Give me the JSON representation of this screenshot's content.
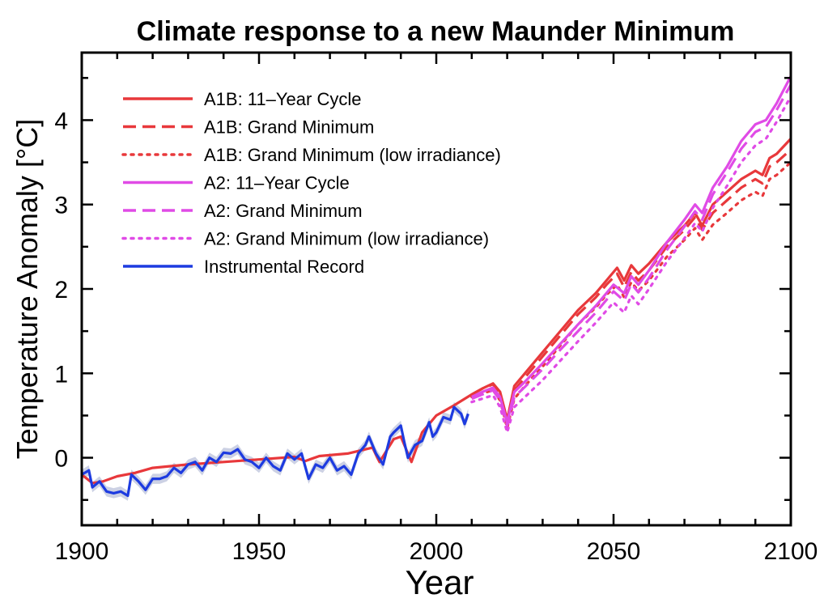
{
  "chart_data": {
    "type": "line",
    "title": "Climate response to a new Maunder Minimum",
    "xlabel": "Year",
    "ylabel": "Temperature Anomaly [°C]",
    "xlim": [
      1900,
      2100
    ],
    "ylim": [
      -0.8,
      4.8
    ],
    "xticks": [
      1900,
      1950,
      2000,
      2050,
      2100
    ],
    "yticks": [
      0,
      1,
      2,
      3,
      4
    ],
    "grid": false,
    "legend_position": "top-left",
    "colors": {
      "a1b": "#e8383b",
      "a2": "#e04be6",
      "instrumental": "#1d3be0",
      "band": "#b7bdd8"
    },
    "series": [
      {
        "name": "A1B: 11–Year Cycle",
        "color": "#e8383b",
        "style": "solid",
        "x": [
          1900,
          1903,
          1906,
          1910,
          1915,
          1920,
          1930,
          1940,
          1950,
          1960,
          1963,
          1967,
          1975,
          1982,
          1984,
          1988,
          1990,
          1993,
          1996,
          2000,
          2005,
          2010,
          2013,
          2016,
          2018,
          2020,
          2022,
          2025,
          2030,
          2035,
          2040,
          2045,
          2048,
          2051,
          2053,
          2055,
          2057,
          2060,
          2065,
          2070,
          2073,
          2075,
          2078,
          2082,
          2086,
          2090,
          2092,
          2094,
          2096,
          2100
        ],
        "y": [
          -0.2,
          -0.3,
          -0.28,
          -0.22,
          -0.18,
          -0.12,
          -0.08,
          -0.05,
          -0.02,
          0.01,
          -0.04,
          0.02,
          0.05,
          0.12,
          -0.05,
          0.22,
          0.25,
          -0.05,
          0.3,
          0.5,
          0.62,
          0.75,
          0.82,
          0.88,
          0.78,
          0.45,
          0.85,
          1.0,
          1.25,
          1.5,
          1.75,
          1.95,
          2.1,
          2.25,
          2.1,
          2.28,
          2.18,
          2.3,
          2.55,
          2.75,
          2.9,
          2.75,
          3.0,
          3.15,
          3.3,
          3.4,
          3.35,
          3.55,
          3.6,
          3.78
        ]
      },
      {
        "name": "A1B: Grand Minimum",
        "color": "#e8383b",
        "style": "dashed",
        "x": [
          2010,
          2013,
          2016,
          2018,
          2020,
          2022,
          2025,
          2030,
          2035,
          2040,
          2045,
          2048,
          2051,
          2053,
          2055,
          2057,
          2060,
          2065,
          2070,
          2073,
          2075,
          2078,
          2082,
          2086,
          2090,
          2092,
          2094,
          2096,
          2100
        ],
        "y": [
          0.75,
          0.82,
          0.87,
          0.75,
          0.42,
          0.8,
          0.95,
          1.2,
          1.45,
          1.7,
          1.9,
          2.05,
          2.18,
          2.02,
          2.2,
          2.1,
          2.22,
          2.5,
          2.7,
          2.85,
          2.7,
          2.9,
          3.05,
          3.2,
          3.3,
          3.25,
          3.45,
          3.5,
          3.65
        ]
      },
      {
        "name": "A1B: Grand Minimum (low irradiance)",
        "color": "#e8383b",
        "style": "dotted",
        "x": [
          2010,
          2013,
          2016,
          2018,
          2020,
          2022,
          2025,
          2030,
          2035,
          2040,
          2045,
          2048,
          2051,
          2053,
          2055,
          2057,
          2060,
          2065,
          2070,
          2073,
          2075,
          2078,
          2082,
          2086,
          2090,
          2092,
          2094,
          2096,
          2100
        ],
        "y": [
          0.72,
          0.76,
          0.8,
          0.68,
          0.35,
          0.7,
          0.85,
          1.08,
          1.33,
          1.58,
          1.78,
          1.93,
          2.05,
          1.9,
          2.08,
          1.98,
          2.1,
          2.38,
          2.58,
          2.72,
          2.58,
          2.76,
          2.9,
          3.05,
          3.15,
          3.1,
          3.3,
          3.35,
          3.5
        ]
      },
      {
        "name": "A2:   11–Year Cycle",
        "color": "#e04be6",
        "style": "solid",
        "x": [
          2010,
          2013,
          2016,
          2018,
          2020,
          2022,
          2025,
          2030,
          2035,
          2040,
          2045,
          2050,
          2053,
          2055,
          2057,
          2060,
          2065,
          2070,
          2073,
          2075,
          2078,
          2082,
          2086,
          2090,
          2093,
          2096,
          2100
        ],
        "y": [
          0.72,
          0.78,
          0.83,
          0.72,
          0.42,
          0.78,
          0.9,
          1.12,
          1.35,
          1.58,
          1.8,
          2.05,
          1.95,
          2.15,
          2.05,
          2.22,
          2.55,
          2.82,
          3.0,
          2.9,
          3.2,
          3.45,
          3.75,
          3.95,
          4.0,
          4.2,
          4.52
        ]
      },
      {
        "name": "A2:   Grand Minimum",
        "color": "#e04be6",
        "style": "dashed",
        "x": [
          2010,
          2013,
          2016,
          2018,
          2020,
          2022,
          2025,
          2030,
          2035,
          2040,
          2045,
          2050,
          2053,
          2055,
          2057,
          2060,
          2065,
          2070,
          2073,
          2075,
          2078,
          2082,
          2086,
          2090,
          2093,
          2096,
          2100
        ],
        "y": [
          0.7,
          0.75,
          0.8,
          0.68,
          0.38,
          0.72,
          0.84,
          1.05,
          1.28,
          1.5,
          1.72,
          1.97,
          1.86,
          2.06,
          1.96,
          2.13,
          2.46,
          2.74,
          2.92,
          2.82,
          3.12,
          3.38,
          3.66,
          3.86,
          3.92,
          4.12,
          4.42
        ]
      },
      {
        "name": "A2:   Grand Minimum (low irradiance)",
        "color": "#e04be6",
        "style": "dotted",
        "x": [
          2010,
          2013,
          2016,
          2018,
          2020,
          2022,
          2025,
          2030,
          2035,
          2040,
          2045,
          2050,
          2053,
          2055,
          2057,
          2060,
          2065,
          2070,
          2073,
          2075,
          2078,
          2082,
          2086,
          2090,
          2093,
          2096,
          2100
        ],
        "y": [
          0.66,
          0.7,
          0.74,
          0.6,
          0.3,
          0.6,
          0.72,
          0.92,
          1.15,
          1.38,
          1.6,
          1.84,
          1.72,
          1.92,
          1.82,
          2.0,
          2.32,
          2.6,
          2.78,
          2.68,
          2.96,
          3.22,
          3.5,
          3.7,
          3.78,
          3.98,
          4.28
        ]
      },
      {
        "name": "Instrumental Record",
        "color": "#1d3be0",
        "style": "solid",
        "x": [
          1900,
          1902,
          1903,
          1905,
          1907,
          1909,
          1911,
          1913,
          1914,
          1916,
          1918,
          1920,
          1922,
          1924,
          1926,
          1928,
          1930,
          1932,
          1934,
          1936,
          1938,
          1940,
          1942,
          1944,
          1946,
          1948,
          1950,
          1952,
          1954,
          1956,
          1958,
          1960,
          1962,
          1964,
          1966,
          1968,
          1970,
          1972,
          1974,
          1976,
          1978,
          1980,
          1981,
          1983,
          1985,
          1987,
          1988,
          1990,
          1991,
          1992,
          1994,
          1996,
          1998,
          1999,
          2000,
          2002,
          2004,
          2005,
          2007,
          2008,
          2009
        ],
        "y": [
          -0.2,
          -0.15,
          -0.35,
          -0.28,
          -0.4,
          -0.42,
          -0.4,
          -0.45,
          -0.2,
          -0.28,
          -0.38,
          -0.25,
          -0.25,
          -0.22,
          -0.12,
          -0.18,
          -0.08,
          -0.05,
          -0.15,
          0.0,
          -0.05,
          0.06,
          0.05,
          0.1,
          -0.02,
          -0.05,
          -0.12,
          0.0,
          -0.1,
          -0.15,
          0.05,
          -0.02,
          0.05,
          -0.25,
          -0.08,
          -0.12,
          0.0,
          -0.15,
          -0.1,
          -0.2,
          0.05,
          0.15,
          0.25,
          0.05,
          -0.08,
          0.25,
          0.3,
          0.38,
          0.18,
          0.0,
          0.15,
          0.2,
          0.42,
          0.25,
          0.3,
          0.48,
          0.45,
          0.6,
          0.52,
          0.4,
          0.52
        ]
      }
    ]
  }
}
